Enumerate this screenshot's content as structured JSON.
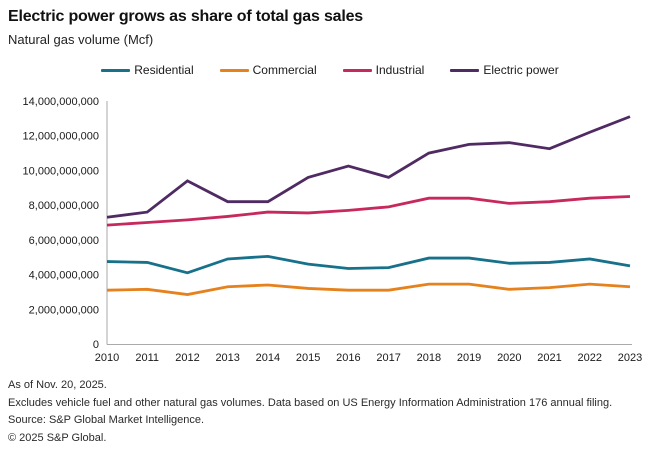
{
  "header": {
    "title": "Electric power grows as share of total gas sales",
    "subtitle": "Natural gas volume (Mcf)"
  },
  "chart_data": {
    "type": "line",
    "x": [
      2010,
      2011,
      2012,
      2013,
      2014,
      2015,
      2016,
      2017,
      2018,
      2019,
      2020,
      2021,
      2022,
      2023
    ],
    "series": [
      {
        "name": "Residential",
        "color": "#17718a",
        "values": [
          4750000000,
          4700000000,
          4100000000,
          4900000000,
          5050000000,
          4600000000,
          4350000000,
          4400000000,
          4950000000,
          4950000000,
          4650000000,
          4700000000,
          4900000000,
          4500000000
        ]
      },
      {
        "name": "Commercial",
        "color": "#e5821e",
        "values": [
          3100000000,
          3150000000,
          2850000000,
          3300000000,
          3400000000,
          3200000000,
          3100000000,
          3100000000,
          3450000000,
          3450000000,
          3150000000,
          3250000000,
          3450000000,
          3300000000
        ]
      },
      {
        "name": "Industrial",
        "color": "#c7295d",
        "values": [
          6850000000,
          7000000000,
          7150000000,
          7350000000,
          7600000000,
          7550000000,
          7700000000,
          7900000000,
          8400000000,
          8400000000,
          8100000000,
          8200000000,
          8400000000,
          8500000000
        ]
      },
      {
        "name": "Electric power",
        "color": "#4f2a63",
        "values": [
          7300000000,
          7600000000,
          9400000000,
          8200000000,
          8200000000,
          9600000000,
          10250000000,
          9600000000,
          11000000000,
          11500000000,
          11600000000,
          11250000000,
          12200000000,
          13100000000
        ]
      }
    ],
    "title": "Electric power grows as share of total gas sales",
    "xlabel": "",
    "ylabel": "Natural gas volume (Mcf)",
    "ylim": [
      0,
      14000000000
    ],
    "ytick_step": 2000000000,
    "grid": false,
    "legend_position": "top-center"
  },
  "colors": {
    "axis": "#aaaaaa",
    "text": "#1a1a1a"
  },
  "footnotes": {
    "as_of": "As of Nov. 20, 2025.",
    "note": "Excludes vehicle fuel and other natural gas volumes. Data based on US Energy Information Administration 176 annual filing.",
    "source": "Source: S&P Global Market Intelligence.",
    "copyright": "© 2025 S&P Global."
  }
}
